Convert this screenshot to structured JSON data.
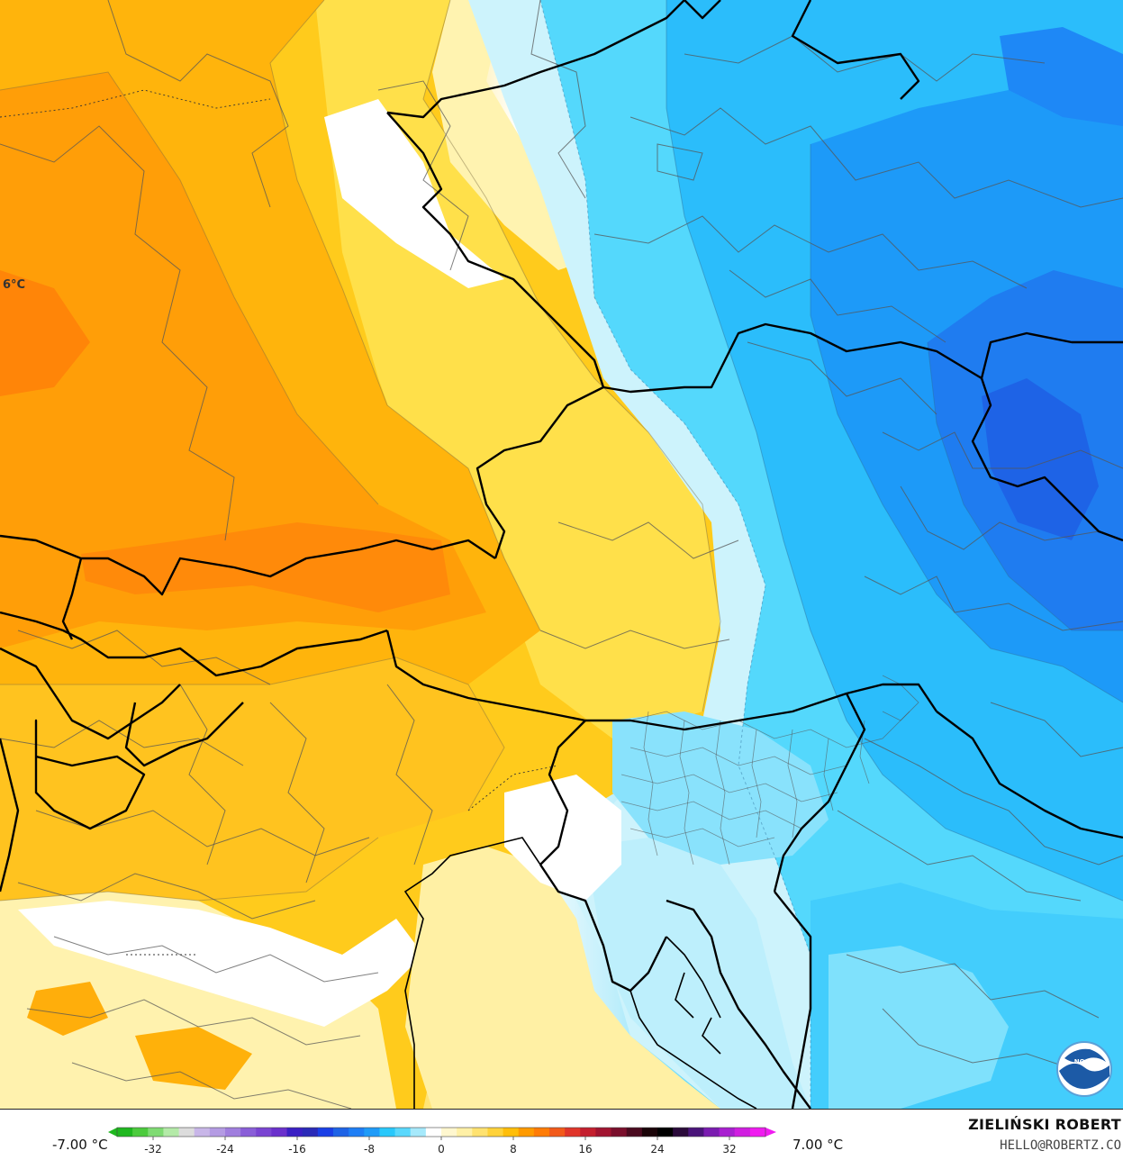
{
  "map": {
    "partial_label": "6°C",
    "logo_text": "NOAA"
  },
  "legend": {
    "min_label": "-7.00 °C",
    "max_label": "7.00 °C",
    "ticks": [
      "-32",
      "-24",
      "-16",
      "-8",
      "0",
      "8",
      "16",
      "24",
      "32"
    ],
    "colors": {
      "cold_deep": "#1a3fe6",
      "cold_mid": "#1e7ef5",
      "cold_light": "#29c8fb",
      "cold_pale": "#a6e9fb",
      "neutral": "#ffffff",
      "warm_pale": "#fff0a6",
      "warm_light": "#ffde3b",
      "warm_mid": "#ffbe0a",
      "warm_deep": "#ff9a00",
      "warm_hot": "#ff7c06"
    }
  },
  "credit": {
    "name": "ZIELIŃSKI ROBERT",
    "email": "HELLO@ROBERTZ.CO"
  }
}
